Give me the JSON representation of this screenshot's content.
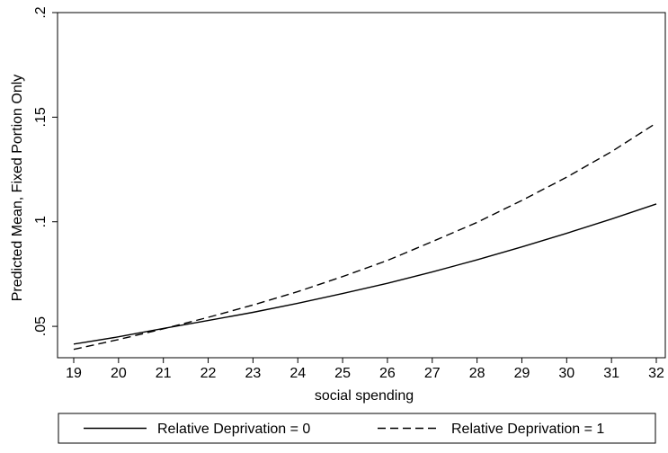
{
  "chart_data": {
    "type": "line",
    "title": "",
    "xlabel": "social spending",
    "ylabel": "Predicted Mean, Fixed Portion Only",
    "xlim": [
      19,
      32
    ],
    "ylim": [
      0.035,
      0.2
    ],
    "xticks": [
      19,
      20,
      21,
      22,
      23,
      24,
      25,
      26,
      27,
      28,
      29,
      30,
      31,
      32
    ],
    "xtick_labels": [
      "19",
      "20",
      "21",
      "22",
      "23",
      "24",
      "25",
      "26",
      "27",
      "28",
      "29",
      "30",
      "31",
      "32"
    ],
    "yticks": [
      0.05,
      0.1,
      0.15,
      0.2
    ],
    "ytick_labels": [
      ".05",
      ".1",
      ".15",
      ".2"
    ],
    "grid": false,
    "legend": "bottom",
    "x": [
      19,
      20,
      21,
      22,
      23,
      24,
      25,
      26,
      27,
      28,
      29,
      30,
      31,
      32
    ],
    "series": [
      {
        "name": "Relative Deprivation = 0",
        "style": "solid",
        "color": "#000000",
        "values": [
          0.0415,
          0.045,
          0.049,
          0.0528,
          0.0567,
          0.061,
          0.0657,
          0.0706,
          0.076,
          0.0818,
          0.088,
          0.0945,
          0.1013,
          0.1085
        ]
      },
      {
        "name": "Relative Deprivation = 1",
        "style": "dashed",
        "color": "#000000",
        "values": [
          0.039,
          0.0437,
          0.0488,
          0.0543,
          0.0602,
          0.0666,
          0.0738,
          0.0815,
          0.0905,
          0.0997,
          0.1102,
          0.1213,
          0.1335,
          0.1472
        ]
      }
    ]
  }
}
